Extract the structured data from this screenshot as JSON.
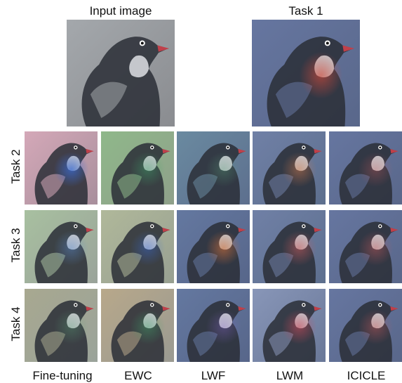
{
  "header": {
    "input_label": "Input image",
    "task1_label": "Task 1"
  },
  "rows": [
    {
      "label": "Task 2",
      "tiles": [
        {
          "base": "#a88f9c",
          "tint": "#d4a8b8",
          "hot": "#3a6ad0",
          "hot_alpha": 0.75
        },
        {
          "base": "#8fa08a",
          "tint": "#8fb88a",
          "hot": "#3fa06a",
          "hot_alpha": 0.45
        },
        {
          "base": "#5d6f8e",
          "tint": "#6a8aa0",
          "hot": "#5aa07a",
          "hot_alpha": 0.35
        },
        {
          "base": "#5d6f8e",
          "tint": "#7080a6",
          "hot": "#d07a4a",
          "hot_alpha": 0.5
        },
        {
          "base": "#59678a",
          "tint": "#6676a0",
          "hot": "#c85a5a",
          "hot_alpha": 0.35
        }
      ]
    },
    {
      "label": "Task 3",
      "tiles": [
        {
          "base": "#9aa39a",
          "tint": "#a8c0a0",
          "hot": "#5a8acd",
          "hot_alpha": 0.45
        },
        {
          "base": "#98a092",
          "tint": "#b0b89a",
          "hot": "#3a6ad0",
          "hot_alpha": 0.45
        },
        {
          "base": "#57668a",
          "tint": "#6478a0",
          "hot": "#d0703a",
          "hot_alpha": 0.6
        },
        {
          "base": "#5d6f8e",
          "tint": "#7080a6",
          "hot": "#c85a5a",
          "hot_alpha": 0.55
        },
        {
          "base": "#59678a",
          "tint": "#6676a0",
          "hot": "#c85a5a",
          "hot_alpha": 0.45
        }
      ]
    },
    {
      "label": "Task 4",
      "tiles": [
        {
          "base": "#9aa39a",
          "tint": "#a8a890",
          "hot": "#5aa07a",
          "hot_alpha": 0.35
        },
        {
          "base": "#9a9a92",
          "tint": "#b8a88a",
          "hot": "#3fa06a",
          "hot_alpha": 0.45
        },
        {
          "base": "#57668a",
          "tint": "#6478a0",
          "hot": "#8a6ad0",
          "hot_alpha": 0.35
        },
        {
          "base": "#6a7898",
          "tint": "#8896b8",
          "hot": "#c84a5a",
          "hot_alpha": 0.6
        },
        {
          "base": "#59678a",
          "tint": "#6676a0",
          "hot": "#c85a5a",
          "hot_alpha": 0.45
        }
      ]
    }
  ],
  "columns": [
    "Fine-tuning",
    "EWC",
    "LWF",
    "LWM",
    "ICICLE"
  ],
  "top_tiles": {
    "input": {
      "base": "#8a8c90",
      "tint": "#a4a8ac",
      "hot": "#a4a8ac",
      "hot_alpha": 0.0
    },
    "task1": {
      "base": "#59678a",
      "tint": "#6676a0",
      "hot": "#d04a3a",
      "hot_alpha": 0.65
    }
  },
  "colors": {
    "bird_dark": "#2a2e36",
    "bird_light": "#e8eaee",
    "beak": "#c0404a"
  }
}
